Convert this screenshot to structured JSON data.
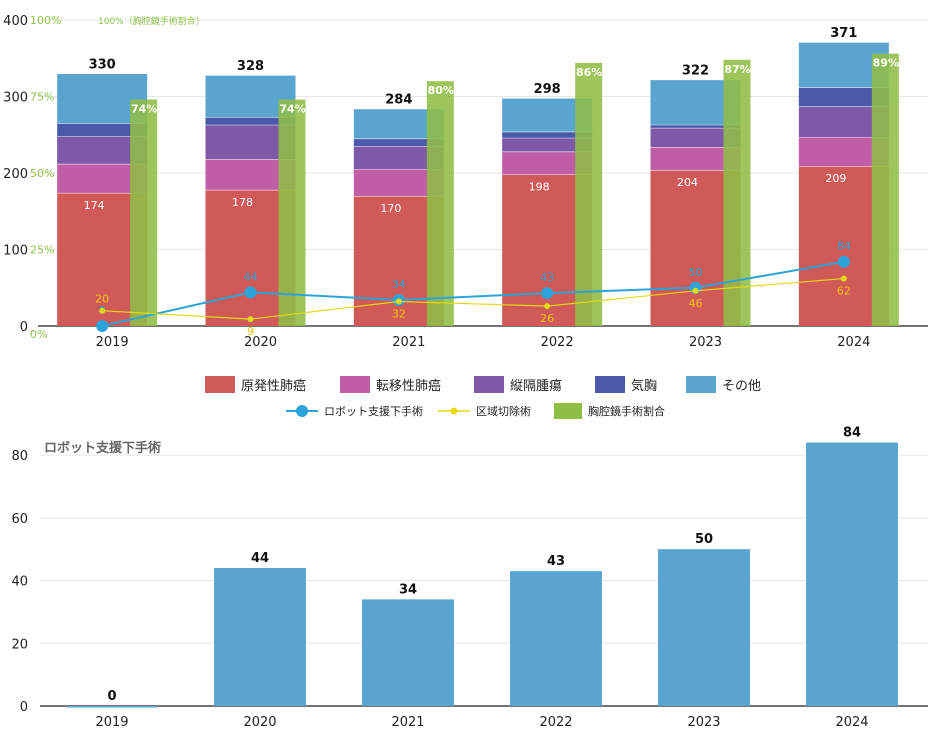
{
  "chart_data": [
    {
      "type": "bar",
      "stacked": true,
      "categories": [
        "2019",
        "2020",
        "2021",
        "2022",
        "2023",
        "2024"
      ],
      "ylim": [
        0,
        400
      ],
      "yticks": [
        0,
        100,
        200,
        300,
        400
      ],
      "y2label": "100%（胸腔鏡手術割合）",
      "y2ticks": [
        "0%",
        "25%",
        "50%",
        "75%",
        "100%"
      ],
      "grid": true,
      "series": [
        {
          "name": "原発性肺癌",
          "color": "#d05a58",
          "values": [
            174,
            178,
            170,
            198,
            204,
            209
          ]
        },
        {
          "name": "転移性肺癌",
          "color": "#bf5ea6",
          "values": [
            38,
            40,
            35,
            30,
            30,
            38
          ]
        },
        {
          "name": "縦隔腫瘍",
          "color": "#7d59a8",
          "values": [
            36,
            45,
            30,
            18,
            25,
            40
          ]
        },
        {
          "name": "気胸",
          "color": "#4b5aa8",
          "values": [
            17,
            10,
            10,
            8,
            4,
            25
          ]
        },
        {
          "name": "その他",
          "color": "#5aa5d0",
          "values": [
            65,
            55,
            39,
            44,
            59,
            59
          ]
        }
      ],
      "totals": [
        330,
        328,
        284,
        298,
        322,
        371
      ],
      "ratio": {
        "name": "胸腔鏡手術割合",
        "color": "#8fbd45",
        "values": [
          74,
          74,
          80,
          86,
          87,
          89
        ],
        "labels": [
          "74%",
          "74%",
          "80%",
          "86%",
          "87%",
          "89%"
        ]
      },
      "lines": [
        {
          "name": "ロボット支援下手術",
          "color": "#2ba3d9",
          "values": [
            0,
            44,
            34,
            43,
            50,
            84
          ]
        },
        {
          "name": "区域切除術",
          "color": "#e3d914",
          "values": [
            20,
            9,
            32,
            26,
            46,
            62
          ]
        }
      ],
      "legend": [
        "原発性肺癌",
        "転移性肺癌",
        "縦隔腫瘍",
        "気胸",
        "その他",
        "ロボット支援下手術",
        "区域切除術",
        "胸腔鏡手術割合"
      ]
    },
    {
      "type": "bar",
      "title": "ロボット支援下手術",
      "categories": [
        "2019",
        "2020",
        "2021",
        "2022",
        "2023",
        "2024"
      ],
      "values": [
        0,
        44,
        34,
        43,
        50,
        84
      ],
      "ylim": [
        0,
        88
      ],
      "yticks": [
        0,
        20,
        40,
        60,
        80
      ],
      "color": "#5aa5d0",
      "grid": true
    }
  ]
}
